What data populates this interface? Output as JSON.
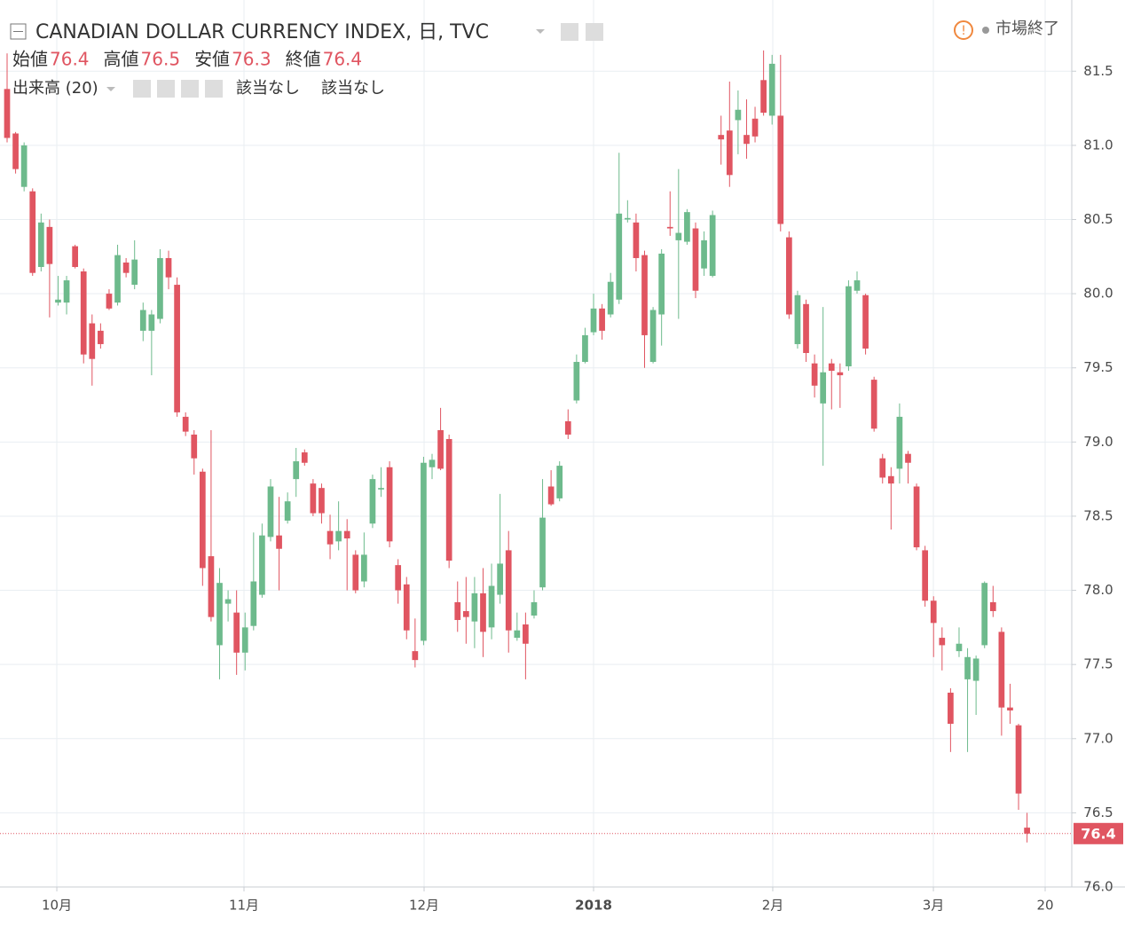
{
  "header": {
    "title": "CANADIAN DOLLAR CURRENCY INDEX, 日, TVC",
    "status": "市場終了",
    "ohlc": [
      {
        "label": "始値",
        "value": "76.4"
      },
      {
        "label": "高値",
        "value": "76.5"
      },
      {
        "label": "安値",
        "value": "76.3"
      },
      {
        "label": "終値",
        "value": "76.4"
      }
    ],
    "volume": {
      "label": "出来高 (20)",
      "values": [
        "該当なし",
        "該当なし"
      ]
    }
  },
  "chart_data": {
    "type": "candlestick",
    "up_color": "#6dba8c",
    "down_color": "#e05561",
    "grid": true,
    "open": [
      81.38,
      81.08,
      80.72,
      80.69,
      80.18,
      80.45,
      79.94,
      79.94,
      80.32,
      80.15,
      79.8,
      79.75,
      80.0,
      79.94,
      80.21,
      80.06,
      79.75,
      79.75,
      79.83,
      80.24,
      80.06,
      79.17,
      79.05,
      78.8,
      78.23,
      77.63,
      77.91,
      77.85,
      77.58,
      77.76,
      77.97,
      78.36,
      78.37,
      78.47,
      78.75,
      78.93,
      78.72,
      78.69,
      78.4,
      78.33,
      78.4,
      78.24,
      78.06,
      78.45,
      78.68,
      78.83,
      78.17,
      78.04,
      77.59,
      77.66,
      78.83,
      79.08,
      79.02,
      77.92,
      77.86,
      77.79,
      77.98,
      77.75,
      77.97,
      78.27,
      77.68,
      77.77,
      77.83,
      78.02,
      78.7,
      78.62,
      79.14,
      79.28,
      79.54,
      79.74,
      79.9,
      79.86,
      79.96,
      80.5,
      80.48,
      80.26,
      79.54,
      79.86,
      80.45,
      80.36,
      80.35,
      80.44,
      80.17,
      80.12,
      81.07,
      81.1,
      81.17,
      81.07,
      81.18,
      81.44,
      81.2,
      81.2,
      80.38,
      79.66,
      79.93,
      79.53,
      79.26,
      79.53,
      79.47,
      79.51,
      80.02,
      79.99,
      79.42,
      78.89,
      78.77,
      78.82,
      78.92,
      78.7,
      78.27,
      77.93,
      77.68,
      77.31,
      77.59,
      77.4,
      77.39,
      77.63,
      77.92,
      77.72,
      77.21,
      77.09,
      76.4
    ],
    "high": [
      81.62,
      81.09,
      81.02,
      80.71,
      80.54,
      80.5,
      80.12,
      80.12,
      80.33,
      80.17,
      79.86,
      79.8,
      80.03,
      80.33,
      80.24,
      80.36,
      79.94,
      79.89,
      80.3,
      80.29,
      80.11,
      79.2,
      79.08,
      78.82,
      79.08,
      78.15,
      78.0,
      78.0,
      77.85,
      78.39,
      78.45,
      78.75,
      78.63,
      78.66,
      78.96,
      78.95,
      78.75,
      78.72,
      78.51,
      78.6,
      78.48,
      78.27,
      78.39,
      78.78,
      78.83,
      78.87,
      78.21,
      78.09,
      77.81,
      78.9,
      78.92,
      79.23,
      79.05,
      78.06,
      78.09,
      78.09,
      78.15,
      78.18,
      78.65,
      78.4,
      77.85,
      77.85,
      78.0,
      78.75,
      78.81,
      78.87,
      79.22,
      79.59,
      79.77,
      80.0,
      79.93,
      80.14,
      80.95,
      80.63,
      80.54,
      80.29,
      79.91,
      80.3,
      80.69,
      80.84,
      80.57,
      80.48,
      80.42,
      80.56,
      81.2,
      81.43,
      81.37,
      81.31,
      81.26,
      81.64,
      81.61,
      81.61,
      80.42,
      80.02,
      79.96,
      79.59,
      79.91,
      79.56,
      79.53,
      80.09,
      80.15,
      80.0,
      79.44,
      78.92,
      78.83,
      79.26,
      78.94,
      78.72,
      78.3,
      77.96,
      77.75,
      77.34,
      77.75,
      77.61,
      77.56,
      78.06,
      78.03,
      77.75,
      77.37,
      77.1,
      76.5
    ],
    "low": [
      81.02,
      80.81,
      80.69,
      80.12,
      80.15,
      79.84,
      79.92,
      79.86,
      80.17,
      79.53,
      79.38,
      79.63,
      79.89,
      79.92,
      80.11,
      80.03,
      79.68,
      79.45,
      79.8,
      80.03,
      79.17,
      79.04,
      78.78,
      78.03,
      77.79,
      77.4,
      77.79,
      77.43,
      77.46,
      77.73,
      77.95,
      78.33,
      78.0,
      78.45,
      78.63,
      78.84,
      78.5,
      78.45,
      78.21,
      78.27,
      78.0,
      77.98,
      78.02,
      78.42,
      78.63,
      78.29,
      77.91,
      77.67,
      77.48,
      77.63,
      78.75,
      78.81,
      78.15,
      77.72,
      77.64,
      77.61,
      77.55,
      77.67,
      77.91,
      77.58,
      77.66,
      77.4,
      77.81,
      78.0,
      78.57,
      78.6,
      79.02,
      79.26,
      79.53,
      79.72,
      79.69,
      79.84,
      79.93,
      80.48,
      80.15,
      79.5,
      79.53,
      79.65,
      80.39,
      79.83,
      80.33,
      79.97,
      80.12,
      80.11,
      80.87,
      80.72,
      80.94,
      80.91,
      81.02,
      81.2,
      81.14,
      80.42,
      79.83,
      79.63,
      79.54,
      79.3,
      78.84,
      79.22,
      79.23,
      79.48,
      80.0,
      79.59,
      79.07,
      78.72,
      78.41,
      78.72,
      78.72,
      78.27,
      77.89,
      77.55,
      77.46,
      76.91,
      77.55,
      76.91,
      77.16,
      77.61,
      77.82,
      77.02,
      77.1,
      76.52,
      76.3
    ],
    "close": [
      81.05,
      80.84,
      81.0,
      80.14,
      80.48,
      80.2,
      79.96,
      80.09,
      80.18,
      79.59,
      79.56,
      79.66,
      79.9,
      80.26,
      80.14,
      80.23,
      79.89,
      79.86,
      80.24,
      80.11,
      79.2,
      79.07,
      78.89,
      78.15,
      77.82,
      78.05,
      77.94,
      77.58,
      77.75,
      78.06,
      78.37,
      78.7,
      78.28,
      78.6,
      78.87,
      78.86,
      78.52,
      78.52,
      78.31,
      78.4,
      78.35,
      78.0,
      78.24,
      78.75,
      78.69,
      78.33,
      78.0,
      77.73,
      77.53,
      78.86,
      78.88,
      78.82,
      78.2,
      77.8,
      77.82,
      77.98,
      77.72,
      78.03,
      78.18,
      77.73,
      77.73,
      77.64,
      77.92,
      78.49,
      78.58,
      78.84,
      79.05,
      79.54,
      79.72,
      79.9,
      79.75,
      80.08,
      80.54,
      80.51,
      80.24,
      79.72,
      79.89,
      80.27,
      80.44,
      80.41,
      80.55,
      80.02,
      80.36,
      80.53,
      81.04,
      80.8,
      81.24,
      81.01,
      81.06,
      81.22,
      81.55,
      80.47,
      79.86,
      79.99,
      79.6,
      79.38,
      79.47,
      79.48,
      79.45,
      80.05,
      80.09,
      79.63,
      79.09,
      78.76,
      78.72,
      79.17,
      78.86,
      78.29,
      77.93,
      77.78,
      77.63,
      77.1,
      77.64,
      77.55,
      77.54,
      78.05,
      77.86,
      77.21,
      77.19,
      76.63,
      76.36
    ],
    "xlim": [
      -0.835,
      125.26
    ],
    "xticks": [
      {
        "value": 5.85,
        "label": "10月"
      },
      {
        "value": 27.87,
        "label": "11月"
      },
      {
        "value": 49.06,
        "label": "12月"
      },
      {
        "value": 69.0,
        "label": "2018"
      },
      {
        "value": 90.08,
        "label": "2月"
      },
      {
        "value": 108.98,
        "label": "3月"
      },
      {
        "value": 122.13,
        "label": "20"
      }
    ],
    "ylim": [
      76.0,
      81.98
    ],
    "yticks": [
      {
        "value": 76,
        "label": "76.0"
      },
      76.5,
      {
        "value": 77,
        "label": "77.0"
      },
      77.5,
      {
        "value": 78,
        "label": "78.0"
      },
      78.5,
      {
        "value": 79,
        "label": "79.0"
      },
      79.5,
      {
        "value": 80,
        "label": "80.0"
      },
      80.5,
      {
        "value": 81,
        "label": "81.0"
      },
      81.5
    ],
    "last_price": {
      "value": 76.36,
      "label": "76.4"
    }
  }
}
